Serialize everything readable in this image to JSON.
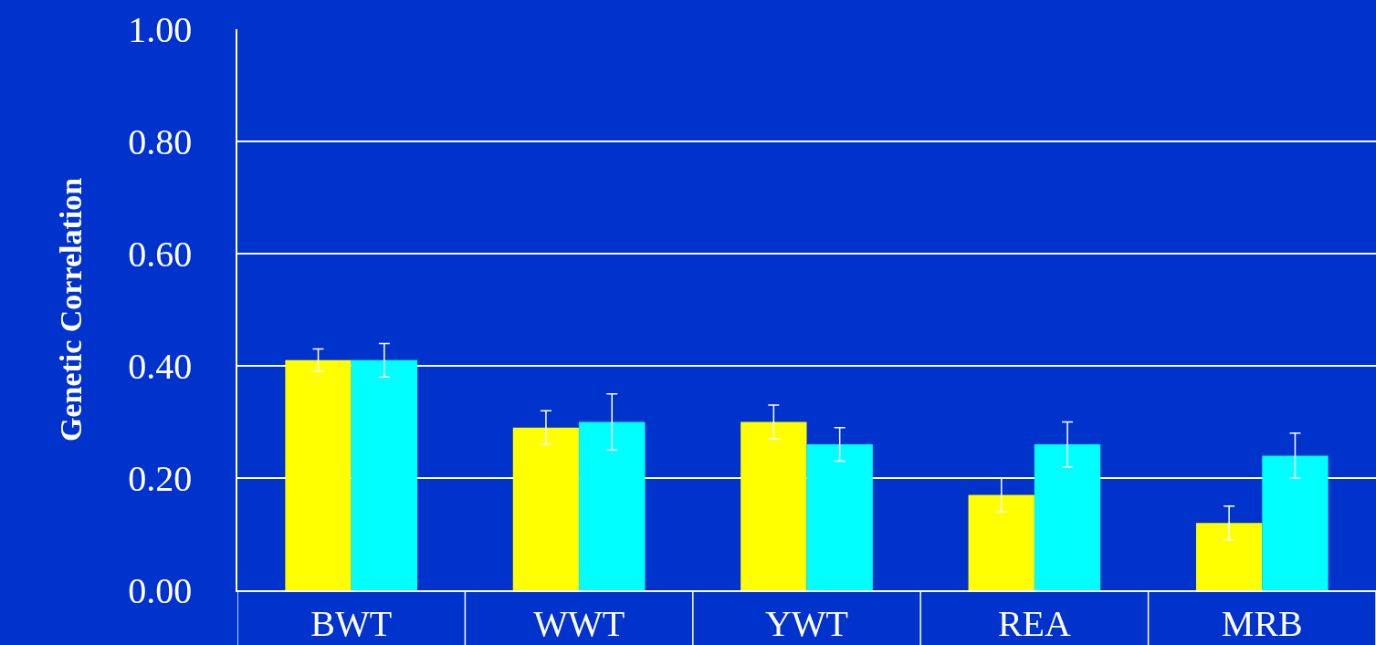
{
  "chart_data": {
    "type": "bar",
    "ylabel": "Genetic Correlation",
    "categories": [
      "BWT",
      "WWT",
      "YWT",
      "REA",
      "MRB"
    ],
    "series": [
      {
        "color": "#ffff00",
        "values": [
          0.41,
          0.29,
          0.3,
          0.17,
          0.12
        ],
        "errors": [
          0.02,
          0.03,
          0.03,
          0.03,
          0.03
        ]
      },
      {
        "color": "#00ffff",
        "values": [
          0.41,
          0.3,
          0.26,
          0.26,
          0.24
        ],
        "errors": [
          0.03,
          0.05,
          0.03,
          0.04,
          0.04
        ]
      }
    ],
    "ylim": [
      0,
      1
    ],
    "yticks": [
      {
        "value": 0,
        "label": "0.00"
      },
      {
        "value": 0.2,
        "label": "0.20"
      },
      {
        "value": 0.4,
        "label": "0.40"
      },
      {
        "value": 0.6,
        "label": "0.60"
      },
      {
        "value": 0.8,
        "label": "0.80"
      },
      {
        "value": 1,
        "label": "1.00"
      }
    ],
    "grid": "y"
  }
}
